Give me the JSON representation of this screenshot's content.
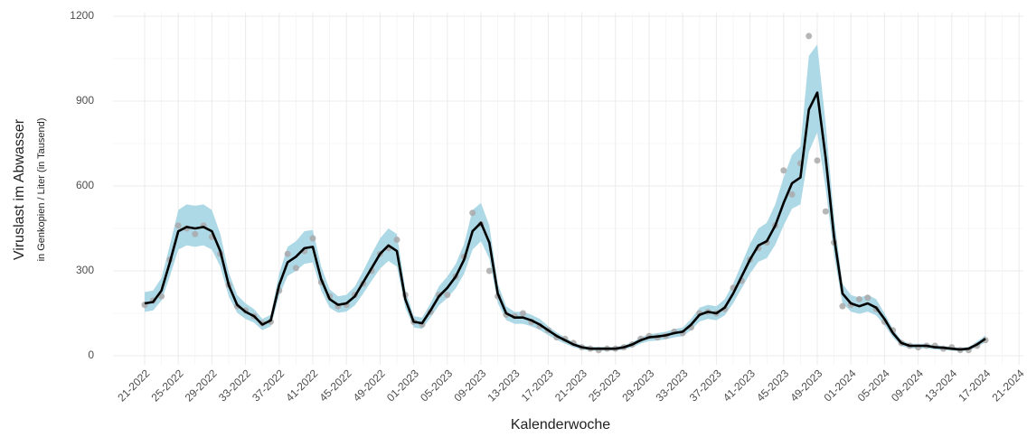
{
  "chart_data": {
    "type": "line",
    "y_label": "Viruslast im Abwasser",
    "y_sublabel": "in Genkopien / Liter (in Tausend)",
    "x_label": "Kalenderwoche",
    "categories": [
      "21-2022",
      null,
      null,
      null,
      "25-2022",
      null,
      null,
      null,
      "29-2022",
      null,
      null,
      null,
      "33-2022",
      null,
      null,
      null,
      "37-2022",
      null,
      null,
      null,
      "41-2022",
      null,
      null,
      null,
      "45-2022",
      null,
      null,
      null,
      "49-2022",
      null,
      null,
      null,
      "01-2023",
      null,
      null,
      null,
      "05-2023",
      null,
      null,
      null,
      "09-2023",
      null,
      null,
      null,
      "13-2023",
      null,
      null,
      null,
      "17-2023",
      null,
      null,
      null,
      "21-2023",
      null,
      null,
      null,
      "25-2023",
      null,
      null,
      null,
      "29-2023",
      null,
      null,
      null,
      "33-2023",
      null,
      null,
      null,
      "37-2023",
      null,
      null,
      null,
      "41-2023",
      null,
      null,
      null,
      "45-2023",
      null,
      null,
      null,
      "49-2023",
      null,
      null,
      null,
      "01-2024",
      null,
      null,
      null,
      "05-2024",
      null,
      null,
      null,
      "09-2024",
      null,
      null,
      null,
      "13-2024",
      null,
      null,
      null,
      "17-2024",
      null,
      null,
      null,
      "21-2024"
    ],
    "series": [
      {
        "color": "#000000",
        "values": [
          185,
          190,
          230,
          330,
          440,
          455,
          450,
          455,
          440,
          370,
          250,
          180,
          155,
          140,
          110,
          125,
          250,
          330,
          350,
          380,
          385,
          270,
          200,
          180,
          185,
          210,
          260,
          310,
          360,
          390,
          370,
          200,
          120,
          115,
          160,
          210,
          240,
          280,
          340,
          440,
          470,
          400,
          220,
          150,
          135,
          135,
          125,
          110,
          90,
          70,
          55,
          40,
          30,
          25,
          25,
          25,
          25,
          30,
          40,
          55,
          65,
          68,
          72,
          80,
          85,
          110,
          145,
          155,
          150,
          170,
          220,
          280,
          340,
          390,
          405,
          460,
          540,
          610,
          630,
          870,
          930,
          700,
          420,
          220,
          185,
          175,
          185,
          170,
          130,
          80,
          45,
          35,
          35,
          35,
          30,
          28,
          25,
          22,
          25,
          40,
          60,
          null,
          null,
          null,
          null
        ]
      }
    ],
    "band": {
      "color": "#add8e6",
      "upper": [
        225,
        230,
        275,
        390,
        515,
        535,
        530,
        535,
        515,
        430,
        295,
        215,
        185,
        165,
        130,
        145,
        290,
        385,
        405,
        440,
        445,
        315,
        235,
        210,
        215,
        245,
        300,
        360,
        415,
        450,
        430,
        235,
        140,
        135,
        185,
        245,
        280,
        325,
        395,
        515,
        540,
        460,
        255,
        175,
        155,
        155,
        145,
        130,
        105,
        82,
        65,
        48,
        37,
        31,
        31,
        31,
        31,
        37,
        48,
        65,
        76,
        80,
        85,
        94,
        100,
        130,
        170,
        180,
        175,
        200,
        255,
        325,
        395,
        450,
        470,
        535,
        630,
        710,
        740,
        1060,
        1100,
        820,
        490,
        255,
        215,
        205,
        215,
        200,
        150,
        95,
        55,
        42,
        42,
        42,
        37,
        34,
        31,
        28,
        31,
        50,
        72,
        null,
        null,
        null,
        null
      ],
      "lower": [
        155,
        160,
        195,
        280,
        375,
        390,
        385,
        390,
        375,
        315,
        210,
        152,
        130,
        117,
        90,
        104,
        212,
        282,
        300,
        325,
        330,
        230,
        170,
        152,
        156,
        178,
        220,
        265,
        308,
        335,
        315,
        170,
        100,
        95,
        135,
        178,
        204,
        238,
        290,
        375,
        405,
        343,
        187,
        126,
        113,
        113,
        104,
        91,
        73,
        56,
        43,
        30,
        22,
        18,
        18,
        18,
        18,
        22,
        30,
        43,
        52,
        54,
        58,
        65,
        69,
        91,
        121,
        130,
        125,
        143,
        186,
        238,
        290,
        332,
        345,
        392,
        460,
        520,
        535,
        720,
        790,
        590,
        355,
        186,
        156,
        148,
        156,
        143,
        108,
        65,
        34,
        26,
        26,
        26,
        22,
        20,
        18,
        15,
        18,
        30,
        48,
        null,
        null,
        null,
        null
      ]
    },
    "points": {
      "color": "#a9a9a9",
      "values": [
        180,
        195,
        210,
        340,
        460,
        450,
        430,
        460,
        420,
        360,
        250,
        175,
        160,
        140,
        115,
        120,
        230,
        360,
        310,
        370,
        415,
        260,
        210,
        175,
        180,
        215,
        255,
        300,
        360,
        380,
        410,
        215,
        120,
        110,
        155,
        215,
        215,
        280,
        350,
        505,
        465,
        300,
        210,
        145,
        140,
        150,
        120,
        105,
        90,
        65,
        60,
        45,
        30,
        25,
        20,
        25,
        25,
        30,
        40,
        60,
        70,
        65,
        70,
        85,
        80,
        100,
        150,
        155,
        150,
        165,
        240,
        265,
        340,
        380,
        400,
        460,
        655,
        570,
        680,
        1130,
        690,
        510,
        400,
        175,
        180,
        200,
        205,
        165,
        120,
        90,
        45,
        35,
        30,
        35,
        35,
        25,
        30,
        20,
        20,
        35,
        55,
        null,
        null,
        null,
        null
      ]
    },
    "ylim": [
      0,
      1200
    ],
    "yticks": [
      0,
      300,
      600,
      900,
      1200
    ],
    "grid": true
  }
}
